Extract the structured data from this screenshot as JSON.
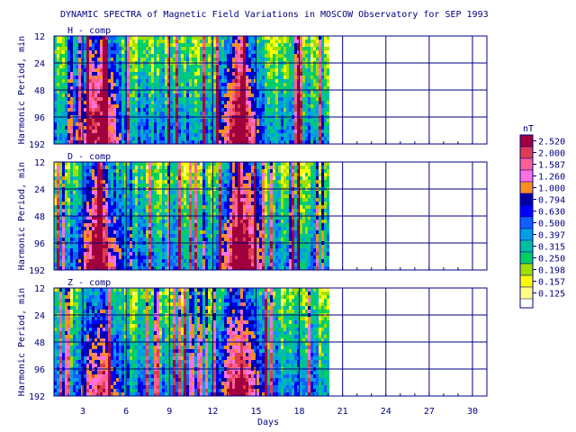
{
  "chart_data": {
    "type": "heatmap",
    "title": "DYNAMIC SPECTRA of Magnetic Field Variations in MOSCOW Observatory for SEP 1993",
    "xlabel": "Days",
    "ylabel": "Harmonic Period, min",
    "x_ticks": [
      "3",
      "6",
      "9",
      "12",
      "15",
      "18",
      "21",
      "24",
      "27",
      "30"
    ],
    "x_range": [
      1,
      31
    ],
    "data_end_day": 20,
    "y_ticks": [
      "12",
      "24",
      "48",
      "96",
      "192"
    ],
    "y_scale": "log2",
    "panels": [
      {
        "name": "H - comp",
        "storm_intensity": [
          0.9,
          1.0
        ]
      },
      {
        "name": "D - comp",
        "storm_intensity": [
          0.95,
          1.0
        ]
      },
      {
        "name": "Z - comp",
        "storm_intensity": [
          0.6,
          0.8
        ]
      }
    ],
    "storm_days": [
      4,
      13.8
    ],
    "colorbar": {
      "unit": "nT",
      "levels": [
        "2.520",
        "2.000",
        "1.587",
        "1.260",
        "1.000",
        "0.794",
        "0.630",
        "0.500",
        "0.397",
        "0.315",
        "0.250",
        "0.198",
        "0.157",
        "0.125"
      ],
      "colors": [
        "#a0003c",
        "#e03c50",
        "#ff6090",
        "#ff70e0",
        "#ff9020",
        "#0000a0",
        "#0000ff",
        "#1060ff",
        "#00a0e0",
        "#00c0a0",
        "#00d060",
        "#a0e000",
        "#ffff00",
        "#ffff80"
      ]
    }
  }
}
